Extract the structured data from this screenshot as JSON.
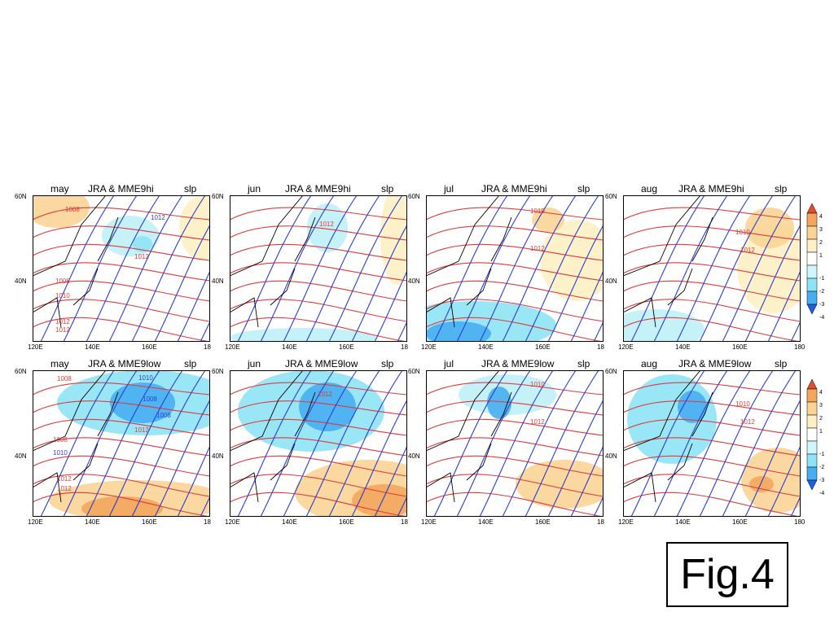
{
  "panels": [
    {
      "month": "may",
      "title": "JRA & MME9hi",
      "var": "slp",
      "x_ticks": [
        "120E",
        "140E",
        "160E",
        "18"
      ],
      "y_ticks": [
        "60N",
        "40N"
      ],
      "labels": [
        {
          "t": "1008",
          "c": "red"
        },
        {
          "t": "1012",
          "c": "blue"
        },
        {
          "t": "1012",
          "c": "red"
        },
        {
          "t": "1008",
          "c": "red"
        },
        {
          "t": "1010",
          "c": "red"
        },
        {
          "t": "1012",
          "c": "red"
        },
        {
          "t": "1012",
          "c": "red"
        }
      ]
    },
    {
      "month": "jun",
      "title": "JRA & MME9hi",
      "var": "slp",
      "x_ticks": [
        "120E",
        "140E",
        "160E",
        "18"
      ],
      "y_ticks": [
        "60N",
        "40N"
      ],
      "labels": [
        {
          "t": "1012",
          "c": "red"
        }
      ]
    },
    {
      "month": "jul",
      "title": "JRA & MME9hi",
      "var": "slp",
      "x_ticks": [
        "120E",
        "140E",
        "160E",
        "18"
      ],
      "y_ticks": [
        "60N",
        "40N"
      ],
      "labels": [
        {
          "t": "1010",
          "c": "red"
        },
        {
          "t": "1012",
          "c": "red"
        }
      ]
    },
    {
      "month": "aug",
      "title": "JRA & MME9hi",
      "var": "slp",
      "x_ticks": [
        "120E",
        "140E",
        "160E",
        "180"
      ],
      "y_ticks": [
        "60N",
        "40N"
      ],
      "labels": [
        {
          "t": "1010",
          "c": "red"
        },
        {
          "t": "1012",
          "c": "red"
        }
      ]
    },
    {
      "month": "may",
      "title": "JRA & MME9low",
      "var": "slp",
      "x_ticks": [
        "120E",
        "140E",
        "160E",
        "18"
      ],
      "y_ticks": [
        "60N",
        "40N"
      ],
      "labels": [
        {
          "t": "1008",
          "c": "red"
        },
        {
          "t": "1010",
          "c": "blue"
        },
        {
          "t": "1008",
          "c": "blue"
        },
        {
          "t": "1008",
          "c": "blue"
        },
        {
          "t": "1012",
          "c": "red"
        },
        {
          "t": "1008",
          "c": "red"
        },
        {
          "t": "1010",
          "c": "blue"
        },
        {
          "t": "1012",
          "c": "red"
        },
        {
          "t": "1012",
          "c": "red"
        }
      ]
    },
    {
      "month": "jun",
      "title": "JRA & MME9low",
      "var": "slp",
      "x_ticks": [
        "120E",
        "140E",
        "160E",
        "18"
      ],
      "y_ticks": [
        "60N",
        "40N"
      ],
      "labels": [
        {
          "t": "1012",
          "c": "red"
        }
      ]
    },
    {
      "month": "jul",
      "title": "JRA & MME9low",
      "var": "slp",
      "x_ticks": [
        "120E",
        "140E",
        "160E",
        "18"
      ],
      "y_ticks": [
        "60N",
        "40N"
      ],
      "labels": [
        {
          "t": "1010",
          "c": "red"
        },
        {
          "t": "1012",
          "c": "red"
        }
      ]
    },
    {
      "month": "aug",
      "title": "JRA & MME9low",
      "var": "slp",
      "x_ticks": [
        "120E",
        "140E",
        "160E",
        "180"
      ],
      "y_ticks": [
        "60N",
        "40N"
      ],
      "labels": [
        {
          "t": "1010",
          "c": "red"
        },
        {
          "t": "1012",
          "c": "red"
        }
      ]
    }
  ],
  "colorbar": {
    "ticks": [
      "4",
      "3",
      "2",
      "1",
      "-1",
      "-2",
      "-3",
      "-4"
    ],
    "colors": [
      "#e0502a",
      "#f3a65c",
      "#fad495",
      "#fdf0c4",
      "#ffffff",
      "#cff6fb",
      "#8ee3f6",
      "#47aef0",
      "#1f60e0"
    ]
  },
  "figure_label": "Fig.4"
}
